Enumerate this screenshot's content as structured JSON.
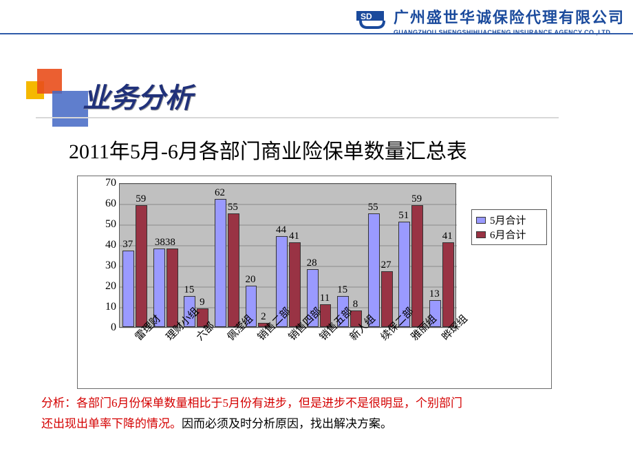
{
  "logo": {
    "cn": "广州盛世华诚保险代理有限公司",
    "en": "GUANGZHOU SHENGSHIHUACHENG INSURANCE AGENCY CO.,LTD"
  },
  "title": "业务分析",
  "subtitle": "2011年5月-6月各部门商业险保单数量汇总表",
  "chart": {
    "type": "bar",
    "categories": [
      "雷理财",
      "理财小组",
      "六部",
      "佩滢组",
      "销售二部",
      "销售四部",
      "销售五部",
      "新人组",
      "续保二部",
      "雅丽组",
      "晔琛组"
    ],
    "series": [
      {
        "name": "5月合计",
        "color": "#9a9aff",
        "values": [
          37,
          38,
          15,
          62,
          20,
          44,
          28,
          15,
          55,
          51,
          13
        ]
      },
      {
        "name": "6月合计",
        "color": "#993344",
        "values": [
          59,
          38,
          9,
          55,
          2,
          41,
          11,
          8,
          27,
          59,
          41
        ]
      }
    ],
    "special_labels": {
      "1": "3838"
    },
    "ylim": [
      0,
      70
    ],
    "ytick_step": 10,
    "plot_bg": "#c0c0c0",
    "box_border": "#6a6a6a",
    "bar_group_width": 0.78,
    "bar_gap": 0.02,
    "legend_position": "right",
    "label_fontsize": 15,
    "tick_fontsize": 16
  },
  "analysis": {
    "prefix": "分析：",
    "red1": "各部门6月份保单数量相比于5月份有进步，但是进步不是很明显，个别部门",
    "line2_black": "还出现出单率下降的情况。",
    "line2_red": "因而必须及时分析原因，找出解决方案。"
  },
  "colors": {
    "brand_blue": "#1a4a9c",
    "accent_orange": "#e94e1b",
    "accent_yellow": "#f5b800",
    "accent_blue": "#4367c4"
  }
}
